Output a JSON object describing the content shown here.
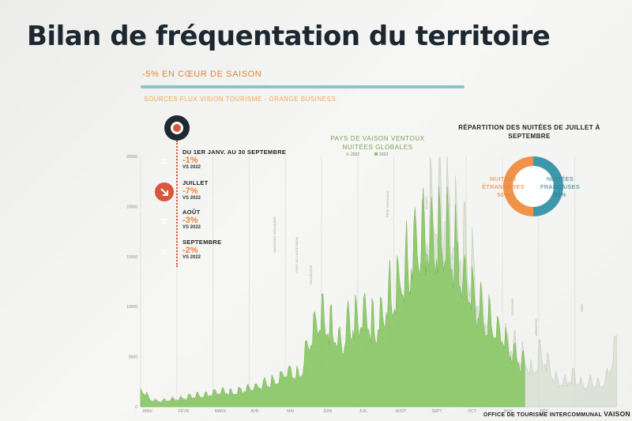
{
  "header": {
    "title": "Bilan de fréquentation du territoire",
    "subtitle": "-5% EN CŒUR DE SAISON",
    "sources": "SOURCES FLUX VISION TOURISME  - ORANGE BUSINESS"
  },
  "stats": [
    {
      "label": "DU 1ER JANV. AU 30 SEPTEMBRE",
      "value": "-1%",
      "vs": "VS 2022",
      "icon": "equals-icon",
      "color": "#f0934a"
    },
    {
      "label": "JUILLET",
      "value": "-7%",
      "vs": "VS 2022",
      "icon": "arrow-down-icon",
      "color": "#d9563c"
    },
    {
      "label": "AOÛT",
      "value": "-3%",
      "vs": "VS 2022",
      "icon": "equals-icon",
      "color": "#f0934a"
    },
    {
      "label": "SEPTEMBRE",
      "value": "-2%",
      "vs": "VS 2022",
      "icon": "equals-icon",
      "color": "#f0934a"
    }
  ],
  "footer": {
    "text": "OFFICE DE TOURISME INTERCOMMUNAL",
    "brand": "VAISON"
  },
  "chart_data": [
    {
      "type": "area",
      "title": "PAYS DE VAISON VENTOUX",
      "subtitle": "NUITÉES GLOBALES",
      "legend": [
        "2022",
        "2023"
      ],
      "legend_position": "top-center",
      "grid": true,
      "ylim": [
        0,
        25000
      ],
      "y_ticks": [
        0,
        5000,
        10000,
        15000,
        20000,
        25000
      ],
      "months": [
        "JANV.",
        "FÉVR.",
        "MARS",
        "AVR.",
        "MAI",
        "JUIN",
        "JUIL.",
        "AOÛT",
        "SEPT.",
        "OCT.",
        "NOV.",
        "DÉC."
      ],
      "colors": {
        "2023": "#8dc86c",
        "2022": "#cfd9c7"
      },
      "series": [
        {
          "name": "2022",
          "weekly_values": [
            1500,
            800,
            600,
            700,
            800,
            900,
            1000,
            1100,
            1200,
            1300,
            1400,
            1300,
            1500,
            1500,
            1800,
            1700,
            2000,
            2600,
            2400,
            2800,
            3500,
            4500,
            4500,
            5000,
            4800,
            6500,
            5500,
            7500,
            6500,
            7000,
            8000,
            9500,
            12000,
            14500,
            17500,
            18500,
            20500,
            19000,
            17000,
            15000,
            12500,
            10500,
            8000,
            6500,
            6500,
            5500,
            4500,
            3500,
            5500,
            3500,
            2500,
            2500,
            3000,
            2000,
            2500,
            2000,
            3000,
            6500
          ]
        },
        {
          "name": "2023",
          "weekly_values": [
            1800,
            800,
            500,
            600,
            700,
            800,
            1000,
            1100,
            1200,
            1400,
            1500,
            1300,
            1600,
            1800,
            2000,
            2200,
            2500,
            3200,
            3500,
            2800,
            6000,
            8500,
            9000,
            7500,
            6000,
            8000,
            8500,
            9000,
            7500,
            9500,
            11000,
            12500,
            14000,
            16000,
            17000,
            16500,
            16500,
            16000,
            14500,
            12000,
            10500,
            9000,
            8000,
            7500,
            6000,
            5000,
            4000
          ]
        }
      ],
      "annotations": [
        "VACANCES SCOLAIRES",
        "PONT DE L'ASCENSION",
        "PENTECÔTE",
        "FÊTE NATIONALE",
        "15 AOÛT",
        "TOUSSAINT",
        "ARMISTICE",
        "NOËL"
      ]
    },
    {
      "type": "pie",
      "title": "RÉPARTITION DES NUITÉES DE JUILLET À SEPTEMBRE",
      "slices": [
        {
          "label": "NUITÉES ÉTRANGÈRES",
          "value": 50,
          "display": "50%",
          "color": "#f0934a"
        },
        {
          "label": "NUITÉES FRANÇAISES",
          "value": 50,
          "display": "50%",
          "color": "#3f97ab"
        }
      ]
    }
  ]
}
